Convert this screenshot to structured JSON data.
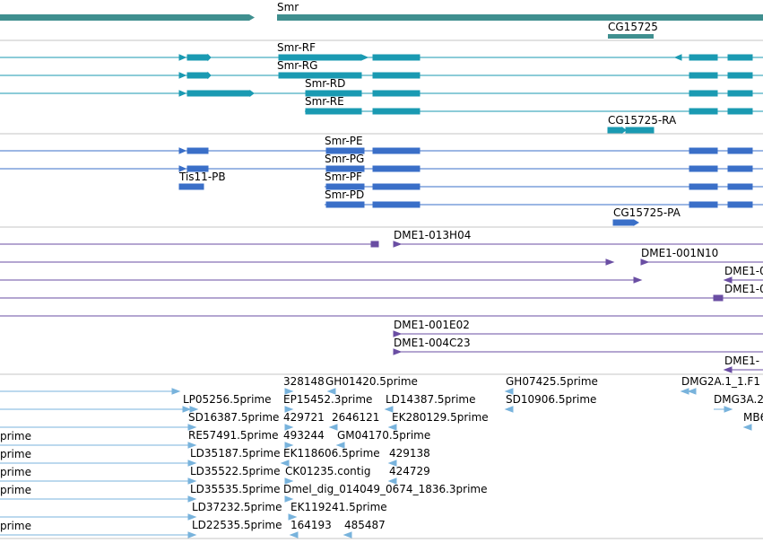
{
  "colors": {
    "gene": "#3f8f8f",
    "mrna": "#1a9ab2",
    "protein": "#3a6fc8",
    "clone": "#6a4ea3",
    "est": "#78b3dc",
    "divider": "#c4c4c4"
  },
  "gene_track": {
    "labels": [
      "Smr",
      "CG15725"
    ]
  },
  "mrna_track": {
    "labels": [
      "Smr-RF",
      "Smr-RG",
      "Smr-RD",
      "Smr-RE",
      "CG15725-RA"
    ]
  },
  "protein_track": {
    "labels": [
      "Smr-PE",
      "Smr-PG",
      "Tis11-PB",
      "Smr-PF",
      "Smr-PD",
      "CG15725-PA"
    ]
  },
  "clone_track": {
    "labels": [
      "DME1-013H04",
      "DME1-001N10",
      "DME1-0",
      "DME1-0",
      "DME1-001E02",
      "DME1-004C23",
      "DME1-"
    ]
  },
  "est_track": {
    "labels": [
      "328148",
      "GH01420.5prime",
      "GH07425.5prime",
      "DMG2A.1_1.F1",
      "LP05256.5prime",
      "EP15452.3prime",
      "LD14387.5prime",
      "SD10906.5prime",
      "DMG3A.2",
      "SD16387.5prime",
      "429721",
      "2646121",
      "EK280129.5prime",
      "MB6",
      "prime",
      "RE57491.5prime",
      "493244",
      "GM04170.5prime",
      "prime",
      "LD35187.5prime",
      "EK118606.5prime",
      "429138",
      "prime",
      "LD35522.5prime",
      "CK01235.contig",
      "424729",
      "prime",
      "LD35535.5prime",
      "Dmel_dig_014049_0674_1836.3prime",
      "prime",
      "LD37232.5prime",
      "EK119241.5prime",
      "LD22535.5prime",
      "164193",
      "485487"
    ]
  }
}
